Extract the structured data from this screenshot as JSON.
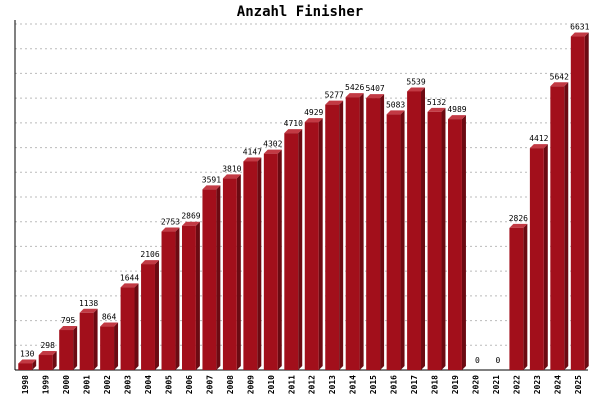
{
  "chart_data": {
    "type": "bar",
    "title": "Anzahl Finisher",
    "xlabel": "",
    "ylabel": "",
    "categories": [
      "1998",
      "1999",
      "2000",
      "2001",
      "2002",
      "2003",
      "2004",
      "2005",
      "2006",
      "2007",
      "2008",
      "2009",
      "2010",
      "2011",
      "2012",
      "2013",
      "2014",
      "2015",
      "2016",
      "2017",
      "2018",
      "2019",
      "2020",
      "2021",
      "2022",
      "2023",
      "2024",
      "2025"
    ],
    "values": [
      130,
      298,
      795,
      1138,
      864,
      1644,
      2106,
      2753,
      2869,
      3591,
      3810,
      4147,
      4302,
      4710,
      4929,
      5277,
      5426,
      5407,
      5083,
      5539,
      5132,
      4989,
      0,
      0,
      2826,
      4412,
      5642,
      6631
    ],
    "ylim": [
      0,
      6880
    ],
    "grid": true,
    "legend": "none",
    "colors": {
      "bar_front": "#a20f1b",
      "bar_side": "#6c0a12",
      "bar_top": "#c23a44",
      "grid": "#bbbbbb",
      "axis": "#000000"
    }
  }
}
